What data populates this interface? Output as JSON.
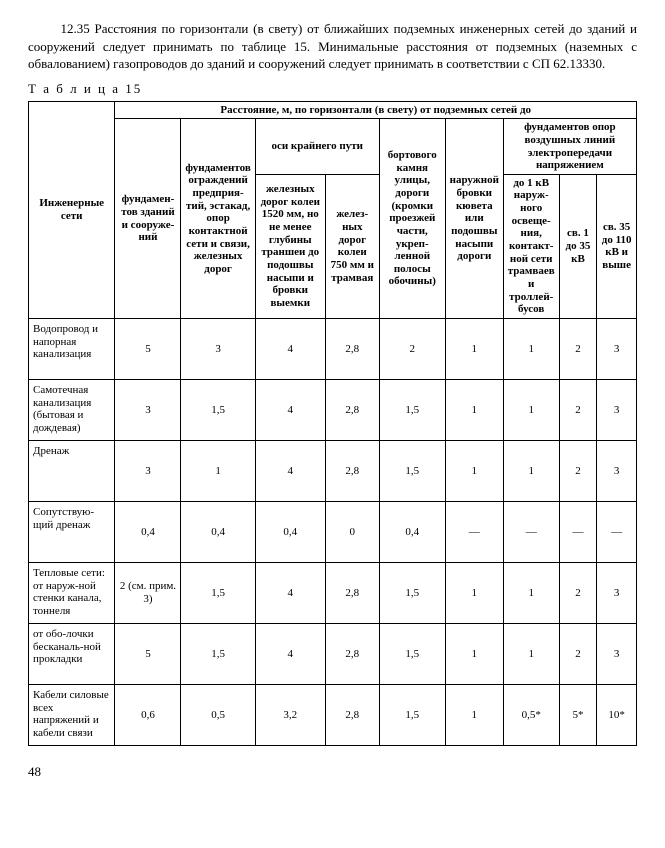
{
  "paragraph": "12.35 Расстояния по горизонтали (в свету) от ближайших подземных инженерных сетей до зданий и сооружений следует принимать по таблице 15. Минимальные расстояния от подземных (наземных с обвалованием) газопроводов до зданий и сооружений следует принимать в соответствии с СП 62.13330.",
  "table_caption": "Т а б л и ц а  15",
  "head": {
    "top": "Расстояние, м, по горизонтали (в свету) от подземных сетей до",
    "col0": "Инженерные сети",
    "col1": "фундамен-тов зданий и сооруже-ний",
    "col2": "фундаментов ограждений предприя-тий, эстакад, опор контактной сети и связи, железных дорог",
    "axis_group": "оси крайнего пути",
    "col3": "железных дорог колеи 1520 мм, но не менее глубины траншеи до подошвы насыпи и бровки выемки",
    "col4": "желез-ных дорог колеи 750 мм и трамвая",
    "col5": "бортового камня улицы, дороги (кромки проезжей части, укреп-ленной полосы обочины)",
    "col6": "наружной бровки кювета или подошвы насыпи дороги",
    "power_group": "фундаментов опор воздушных линий электропередачи напряжением",
    "col7": "до 1 кВ наруж-ного освеще-ния, контакт-ной сети трамваев и троллей-бусов",
    "col8": "св. 1 до 35 кВ",
    "col9": "св. 35 до 110 кВ и выше"
  },
  "rows": [
    {
      "name": "Водопровод и напорная канализация",
      "v": [
        "5",
        "3",
        "4",
        "2,8",
        "2",
        "1",
        "1",
        "2",
        "3"
      ]
    },
    {
      "name": "Самотечная канализация (бытовая и дождевая)",
      "v": [
        "3",
        "1,5",
        "4",
        "2,8",
        "1,5",
        "1",
        "1",
        "2",
        "3"
      ]
    },
    {
      "name": "Дренаж",
      "v": [
        "3",
        "1",
        "4",
        "2,8",
        "1,5",
        "1",
        "1",
        "2",
        "3"
      ]
    },
    {
      "name": "Сопутствую-щий дренаж",
      "v": [
        "0,4",
        "0,4",
        "0,4",
        "0",
        "0,4",
        "—",
        "—",
        "—",
        "—"
      ]
    },
    {
      "name": "Тепловые сети:\n  от наруж-ной стенки канала, тоннеля",
      "v": [
        "2 (см. прим. 3)",
        "1,5",
        "4",
        "2,8",
        "1,5",
        "1",
        "1",
        "2",
        "3"
      ]
    },
    {
      "name": "  от обо-лочки бесканаль-ной прокладки",
      "v": [
        "5",
        "1,5",
        "4",
        "2,8",
        "1,5",
        "1",
        "1",
        "2",
        "3"
      ]
    },
    {
      "name": "Кабели силовые всех напряжений и кабели связи",
      "v": [
        "0,6",
        "0,5",
        "3,2",
        "2,8",
        "1,5",
        "1",
        "0,5*",
        "5*",
        "10*"
      ]
    }
  ],
  "page_number": "48"
}
